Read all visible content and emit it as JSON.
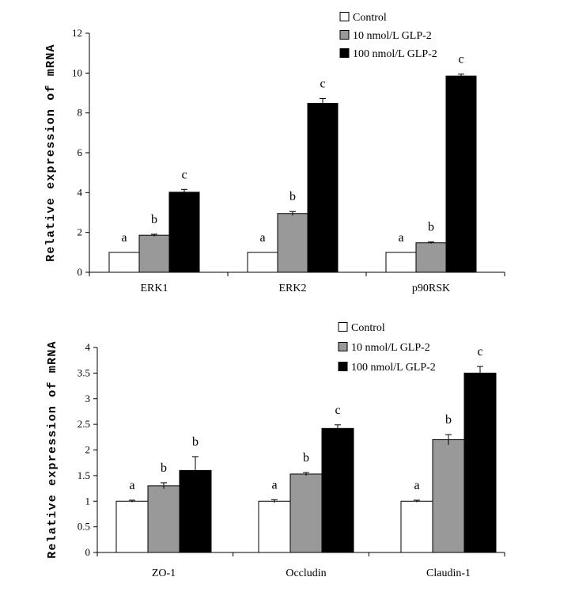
{
  "colors": {
    "control": "#ffffff",
    "glp2_10": "#999999",
    "glp2_100": "#000000",
    "axis": "#000000"
  },
  "chart_data": [
    {
      "type": "bar",
      "ylabel": "Relative expression of mRNA",
      "xlabel": "",
      "ylim": [
        0,
        12
      ],
      "yticks": [
        0,
        2,
        4,
        6,
        8,
        10,
        12
      ],
      "ytick_labels": [
        "0",
        "2",
        "4",
        "6",
        "8",
        "10",
        "12"
      ],
      "categories": [
        "ERK1",
        "ERK2",
        "p90RSK"
      ],
      "legend": {
        "placement": "top-right"
      },
      "series": [
        {
          "name": "Control",
          "values": [
            1.0,
            1.0,
            1.0
          ],
          "errors": [
            0,
            0,
            0
          ],
          "letters": [
            "a",
            "a",
            "a"
          ]
        },
        {
          "name": "10 nmol/L GLP-2",
          "values": [
            1.86,
            2.95,
            1.48
          ],
          "errors": [
            0.05,
            0.1,
            0.04
          ],
          "letters": [
            "b",
            "b",
            "b"
          ]
        },
        {
          "name": "100 nmol/L GLP-2",
          "values": [
            4.02,
            8.48,
            9.85
          ],
          "errors": [
            0.14,
            0.24,
            0.1
          ],
          "letters": [
            "c",
            "c",
            "c"
          ]
        }
      ]
    },
    {
      "type": "bar",
      "ylabel": "Relative expression of mRNA",
      "xlabel": "",
      "ylim": [
        0,
        4
      ],
      "yticks": [
        0,
        0.5,
        1,
        1.5,
        2,
        2.5,
        3,
        3.5,
        4
      ],
      "ytick_labels": [
        "0",
        "0.5",
        "1",
        "1.5",
        "2",
        "2.5",
        "3",
        "3.5",
        "4"
      ],
      "categories": [
        "ZO-1",
        "Occludin",
        "Claudin-1"
      ],
      "legend": {
        "placement": "top-right"
      },
      "series": [
        {
          "name": "Control",
          "values": [
            1.0,
            1.0,
            1.0
          ],
          "errors": [
            0.02,
            0.03,
            0.02
          ],
          "letters": [
            "a",
            "a",
            "a"
          ]
        },
        {
          "name": "10 nmol/L GLP-2",
          "values": [
            1.3,
            1.53,
            2.2
          ],
          "errors": [
            0.06,
            0.03,
            0.1
          ],
          "letters": [
            "b",
            "b",
            "b"
          ]
        },
        {
          "name": "100 nmol/L GLP-2",
          "values": [
            1.6,
            2.42,
            3.5
          ],
          "errors": [
            0.27,
            0.07,
            0.13
          ],
          "letters": [
            "b",
            "c",
            "c"
          ]
        }
      ]
    }
  ]
}
